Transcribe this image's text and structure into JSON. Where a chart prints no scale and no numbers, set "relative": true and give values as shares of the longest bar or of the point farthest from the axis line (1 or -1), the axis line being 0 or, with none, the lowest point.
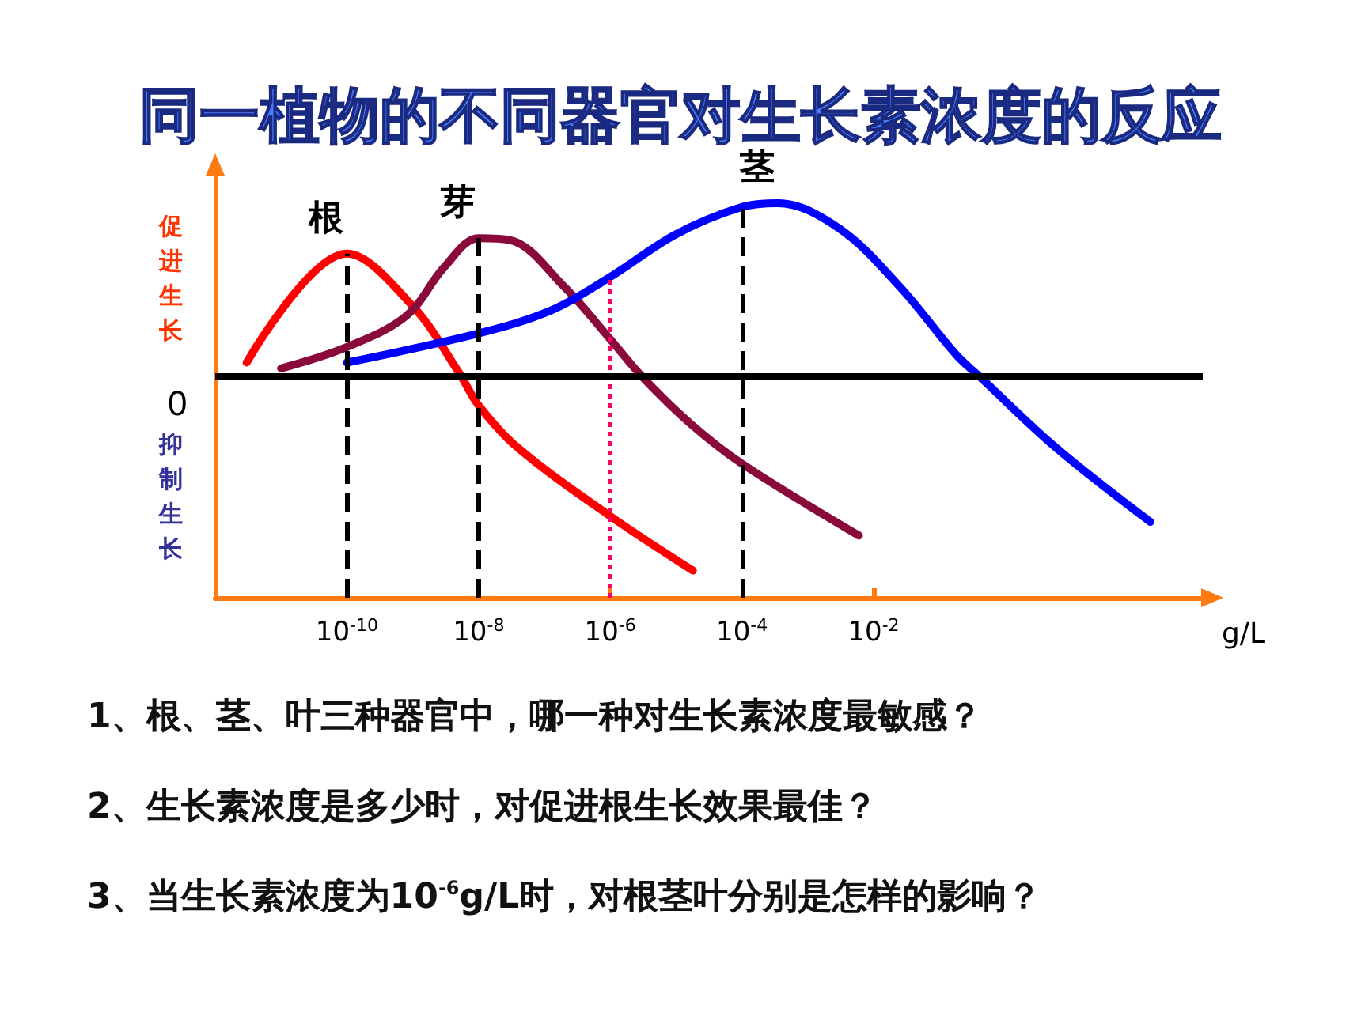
{
  "chart_data": {
    "type": "line",
    "title": "同一植物的不同器官对生长素浓度的反应",
    "xlabel": "g/L",
    "relative": true,
    "log": "x",
    "xlim": [
      1e-12,
      1000.0
    ],
    "xticks": [
      {
        "value": 1e-10,
        "label": "10$^{-10}$"
      },
      {
        "value": 1e-08,
        "label": "10$^{-8}$"
      },
      {
        "value": 1e-06,
        "label": "10$^{-6}$"
      },
      {
        "value": 0.0001,
        "label": "10$^{-4}$"
      },
      {
        "value": 0.01,
        "label": "10$^{-2}$"
      }
    ],
    "series": [
      {
        "name": "根",
        "color": "#ff0000",
        "x": [
          3e-12,
          1e-10,
          1e-09,
          5e-09,
          1e-08,
          4e-08,
          1e-06,
          1.8e-05
        ],
        "values": [
          0.07,
          0.63,
          0.36,
          0.02,
          -0.15,
          -0.37,
          -0.72,
          -1
        ]
      },
      {
        "name": "芽",
        "color": "#8b0a3c",
        "x": [
          1e-11,
          1e-10,
          8e-10,
          3e-09,
          1e-08,
          3e-08,
          2e-07,
          1e-06,
          3e-06,
          1.6e-05,
          0.0001,
          0.006
        ],
        "values": [
          0.04,
          0.15,
          0.31,
          0.56,
          0.71,
          0.7,
          0.46,
          0.19,
          0,
          -0.24,
          -0.45,
          -0.82
        ]
      },
      {
        "name": "茎",
        "color": "#0000ff",
        "x": [
          1e-10,
          1e-08,
          1.3e-07,
          1e-06,
          1e-05,
          0.0001,
          0.00035,
          0.003,
          0.025,
          0.18,
          0.4,
          6,
          160
        ],
        "values": [
          0.07,
          0.22,
          0.34,
          0.51,
          0.73,
          0.87,
          0.89,
          0.76,
          0.46,
          0.11,
          0,
          -0.37,
          -0.75
        ]
      }
    ],
    "ref_lines": [
      {
        "axis": "x",
        "value": 1e-10,
        "color": "#000000",
        "line_style": "dashed"
      },
      {
        "axis": "x",
        "value": 1e-08,
        "color": "#000000",
        "line_style": "dashed"
      },
      {
        "axis": "x",
        "value": 1e-06,
        "color": "#ff0066",
        "line_style": "dotted"
      },
      {
        "axis": "x",
        "value": 0.0001,
        "color": "#000000",
        "line_style": "dashed"
      }
    ],
    "annotations": [
      "促进生长",
      "抑制生长",
      "0",
      "1、根、茎、叶三种器官中，哪一种对生长素浓度最敏感？",
      "2、生长素浓度是多少时，对促进根生长效果最佳？",
      "3、当生长素浓度为10$^{-6}$g/L时，对根茎叶分别是怎样的影响？"
    ],
    "legend": false,
    "grid": false,
    "marker": "none",
    "line_style": "solid"
  }
}
